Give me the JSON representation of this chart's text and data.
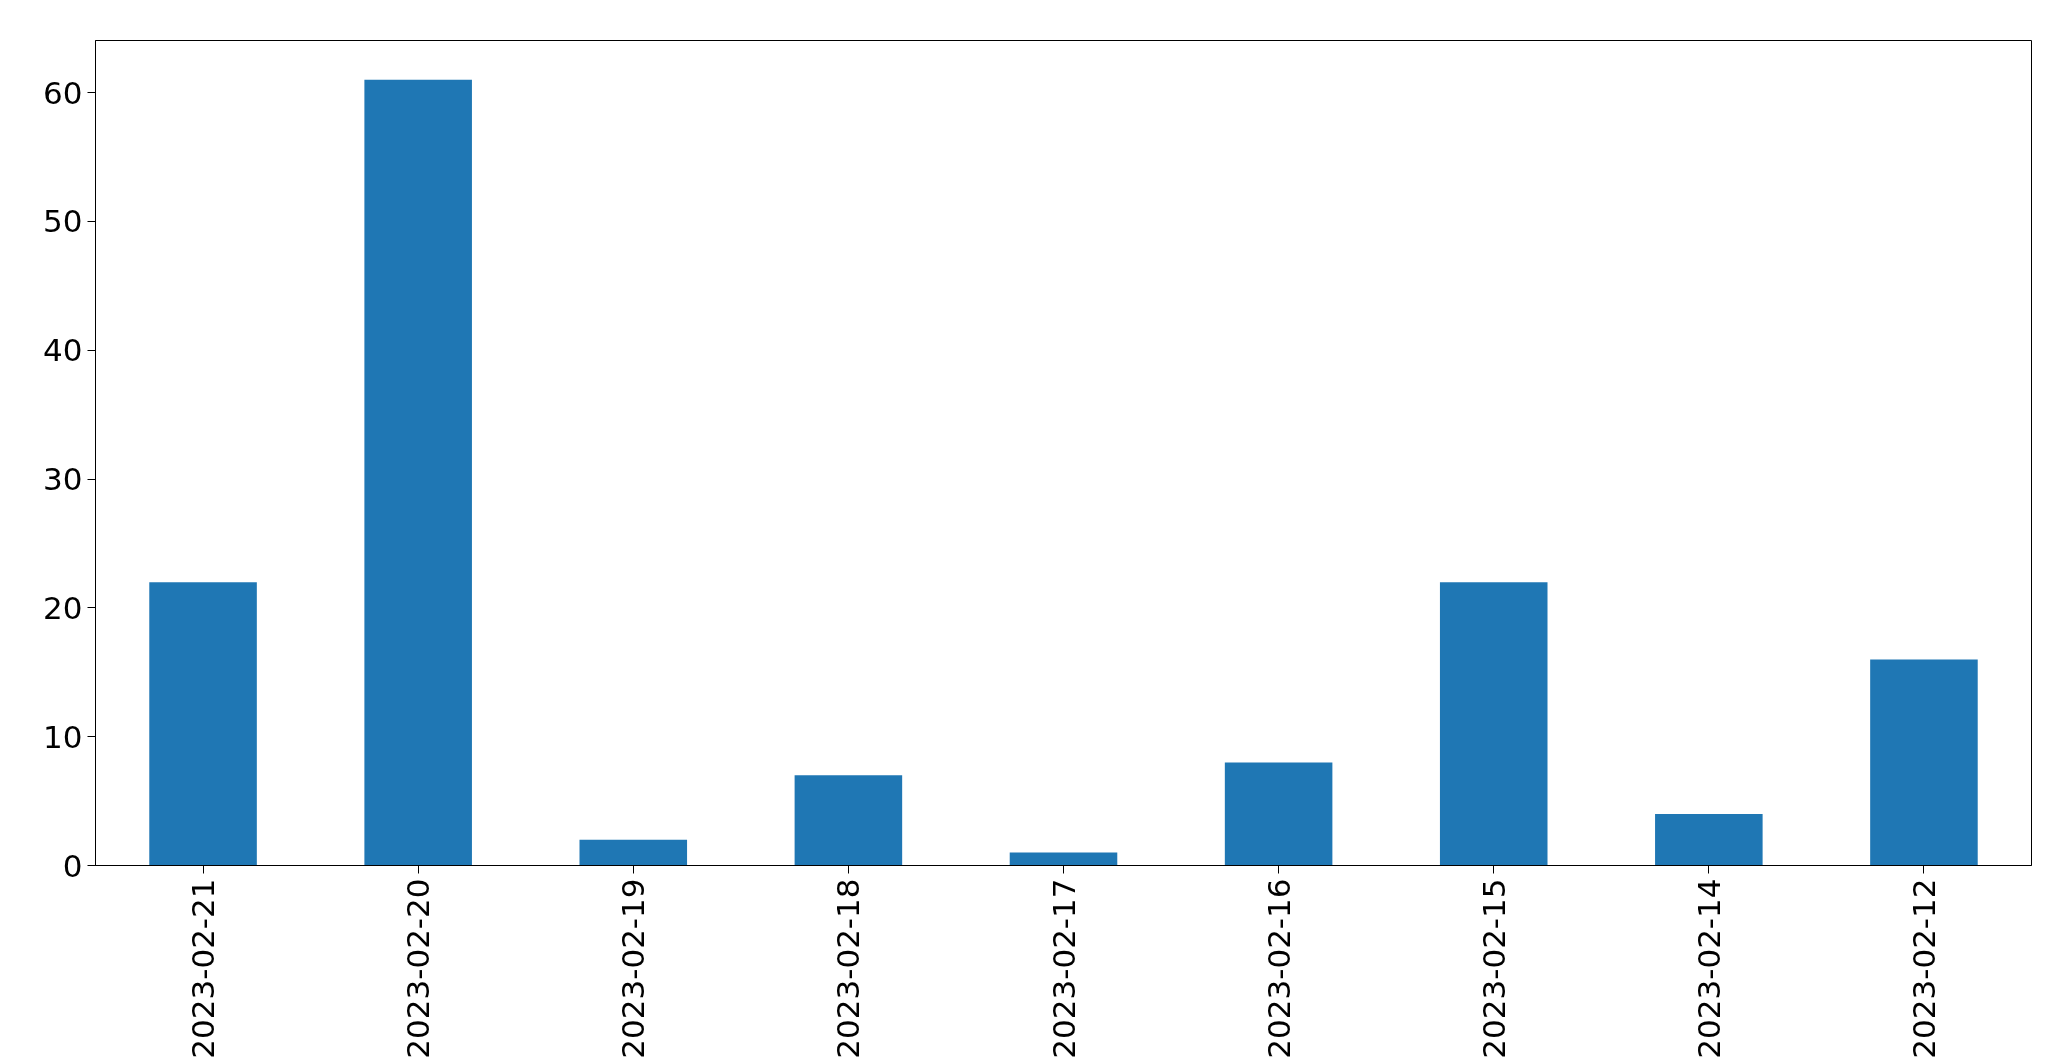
{
  "chart_data": {
    "type": "bar",
    "categories": [
      "2023-02-21",
      "2023-02-20",
      "2023-02-19",
      "2023-02-18",
      "2023-02-17",
      "2023-02-16",
      "2023-02-15",
      "2023-02-14",
      "2023-02-12"
    ],
    "values": [
      22,
      61,
      2,
      7,
      1,
      8,
      22,
      4,
      16
    ],
    "color": "#1f77b4",
    "ylim": [
      0,
      64.05
    ],
    "yticks": [
      0,
      10,
      20,
      30,
      40,
      50,
      60
    ],
    "grid": false
  }
}
